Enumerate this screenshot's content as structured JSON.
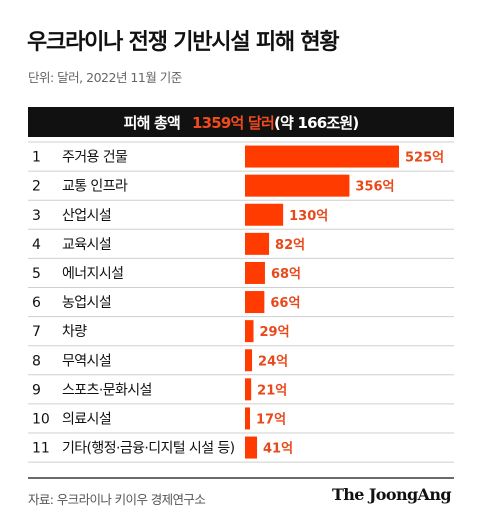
{
  "title": "우크라이나 전쟁 기반시설 피해 현황",
  "unit_note": "단위: 달러, 2022년 11월 기준",
  "total": {
    "label": "피해 총액",
    "value": "1359억 달러",
    "approx": "(약 166조원)"
  },
  "source": "자료: 우크라이나 키이우 경제연구소",
  "brand": "The JoongAng",
  "colors": {
    "bar": "#ff3b00",
    "value_text": "#e9491a",
    "header_bg": "#111111"
  },
  "chart_data": {
    "type": "bar",
    "orientation": "horizontal",
    "categories": [
      "주거용 건물",
      "교통 인프라",
      "산업시설",
      "교육시설",
      "에너지시설",
      "농업시설",
      "차량",
      "무역시설",
      "스포츠·문화시설",
      "의료시설",
      "기타(행정·금융·디지털 시설 등)"
    ],
    "ranks": [
      "1",
      "2",
      "3",
      "4",
      "5",
      "6",
      "7",
      "8",
      "9",
      "10",
      "11"
    ],
    "values": [
      525,
      356,
      130,
      82,
      68,
      66,
      29,
      24,
      21,
      17,
      41
    ],
    "value_labels": [
      "525억",
      "356억",
      "130억",
      "82억",
      "68억",
      "66억",
      "29억",
      "24억",
      "21억",
      "17억",
      "41억"
    ],
    "grid": false
  }
}
